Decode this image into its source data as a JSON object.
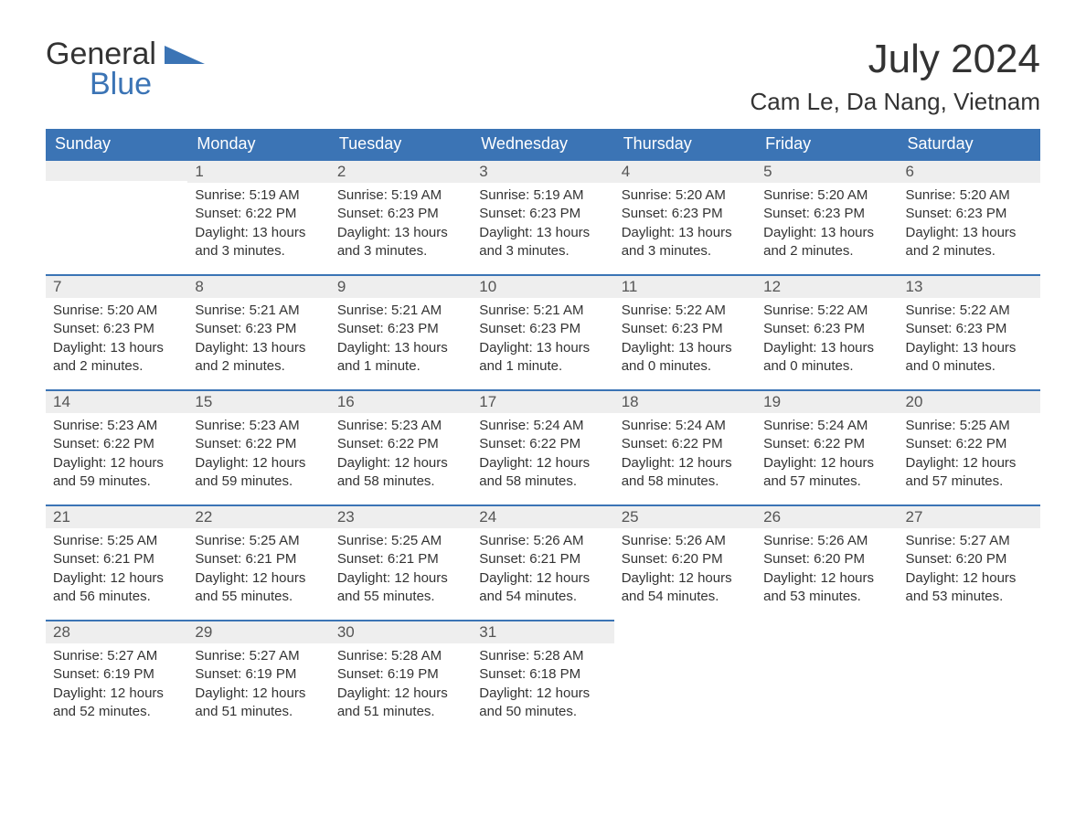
{
  "logo": {
    "line1": "General",
    "line2": "Blue"
  },
  "title": "July 2024",
  "subtitle": "Cam Le, Da Nang, Vietnam",
  "colors": {
    "header_bg": "#3b74b5",
    "header_text": "#ffffff",
    "daynum_bg": "#eeeeee",
    "daynum_border": "#3b74b5",
    "body_text": "#333333",
    "logo_accent": "#3b74b5",
    "page_bg": "#ffffff"
  },
  "typography": {
    "title_fontsize": 44,
    "subtitle_fontsize": 26,
    "header_fontsize": 18,
    "daynum_fontsize": 17,
    "body_fontsize": 15,
    "logo_fontsize": 34
  },
  "day_headers": [
    "Sunday",
    "Monday",
    "Tuesday",
    "Wednesday",
    "Thursday",
    "Friday",
    "Saturday"
  ],
  "weeks": [
    [
      null,
      {
        "n": "1",
        "sunrise": "Sunrise: 5:19 AM",
        "sunset": "Sunset: 6:22 PM",
        "dl1": "Daylight: 13 hours",
        "dl2": "and 3 minutes."
      },
      {
        "n": "2",
        "sunrise": "Sunrise: 5:19 AM",
        "sunset": "Sunset: 6:23 PM",
        "dl1": "Daylight: 13 hours",
        "dl2": "and 3 minutes."
      },
      {
        "n": "3",
        "sunrise": "Sunrise: 5:19 AM",
        "sunset": "Sunset: 6:23 PM",
        "dl1": "Daylight: 13 hours",
        "dl2": "and 3 minutes."
      },
      {
        "n": "4",
        "sunrise": "Sunrise: 5:20 AM",
        "sunset": "Sunset: 6:23 PM",
        "dl1": "Daylight: 13 hours",
        "dl2": "and 3 minutes."
      },
      {
        "n": "5",
        "sunrise": "Sunrise: 5:20 AM",
        "sunset": "Sunset: 6:23 PM",
        "dl1": "Daylight: 13 hours",
        "dl2": "and 2 minutes."
      },
      {
        "n": "6",
        "sunrise": "Sunrise: 5:20 AM",
        "sunset": "Sunset: 6:23 PM",
        "dl1": "Daylight: 13 hours",
        "dl2": "and 2 minutes."
      }
    ],
    [
      {
        "n": "7",
        "sunrise": "Sunrise: 5:20 AM",
        "sunset": "Sunset: 6:23 PM",
        "dl1": "Daylight: 13 hours",
        "dl2": "and 2 minutes."
      },
      {
        "n": "8",
        "sunrise": "Sunrise: 5:21 AM",
        "sunset": "Sunset: 6:23 PM",
        "dl1": "Daylight: 13 hours",
        "dl2": "and 2 minutes."
      },
      {
        "n": "9",
        "sunrise": "Sunrise: 5:21 AM",
        "sunset": "Sunset: 6:23 PM",
        "dl1": "Daylight: 13 hours",
        "dl2": "and 1 minute."
      },
      {
        "n": "10",
        "sunrise": "Sunrise: 5:21 AM",
        "sunset": "Sunset: 6:23 PM",
        "dl1": "Daylight: 13 hours",
        "dl2": "and 1 minute."
      },
      {
        "n": "11",
        "sunrise": "Sunrise: 5:22 AM",
        "sunset": "Sunset: 6:23 PM",
        "dl1": "Daylight: 13 hours",
        "dl2": "and 0 minutes."
      },
      {
        "n": "12",
        "sunrise": "Sunrise: 5:22 AM",
        "sunset": "Sunset: 6:23 PM",
        "dl1": "Daylight: 13 hours",
        "dl2": "and 0 minutes."
      },
      {
        "n": "13",
        "sunrise": "Sunrise: 5:22 AM",
        "sunset": "Sunset: 6:23 PM",
        "dl1": "Daylight: 13 hours",
        "dl2": "and 0 minutes."
      }
    ],
    [
      {
        "n": "14",
        "sunrise": "Sunrise: 5:23 AM",
        "sunset": "Sunset: 6:22 PM",
        "dl1": "Daylight: 12 hours",
        "dl2": "and 59 minutes."
      },
      {
        "n": "15",
        "sunrise": "Sunrise: 5:23 AM",
        "sunset": "Sunset: 6:22 PM",
        "dl1": "Daylight: 12 hours",
        "dl2": "and 59 minutes."
      },
      {
        "n": "16",
        "sunrise": "Sunrise: 5:23 AM",
        "sunset": "Sunset: 6:22 PM",
        "dl1": "Daylight: 12 hours",
        "dl2": "and 58 minutes."
      },
      {
        "n": "17",
        "sunrise": "Sunrise: 5:24 AM",
        "sunset": "Sunset: 6:22 PM",
        "dl1": "Daylight: 12 hours",
        "dl2": "and 58 minutes."
      },
      {
        "n": "18",
        "sunrise": "Sunrise: 5:24 AM",
        "sunset": "Sunset: 6:22 PM",
        "dl1": "Daylight: 12 hours",
        "dl2": "and 58 minutes."
      },
      {
        "n": "19",
        "sunrise": "Sunrise: 5:24 AM",
        "sunset": "Sunset: 6:22 PM",
        "dl1": "Daylight: 12 hours",
        "dl2": "and 57 minutes."
      },
      {
        "n": "20",
        "sunrise": "Sunrise: 5:25 AM",
        "sunset": "Sunset: 6:22 PM",
        "dl1": "Daylight: 12 hours",
        "dl2": "and 57 minutes."
      }
    ],
    [
      {
        "n": "21",
        "sunrise": "Sunrise: 5:25 AM",
        "sunset": "Sunset: 6:21 PM",
        "dl1": "Daylight: 12 hours",
        "dl2": "and 56 minutes."
      },
      {
        "n": "22",
        "sunrise": "Sunrise: 5:25 AM",
        "sunset": "Sunset: 6:21 PM",
        "dl1": "Daylight: 12 hours",
        "dl2": "and 55 minutes."
      },
      {
        "n": "23",
        "sunrise": "Sunrise: 5:25 AM",
        "sunset": "Sunset: 6:21 PM",
        "dl1": "Daylight: 12 hours",
        "dl2": "and 55 minutes."
      },
      {
        "n": "24",
        "sunrise": "Sunrise: 5:26 AM",
        "sunset": "Sunset: 6:21 PM",
        "dl1": "Daylight: 12 hours",
        "dl2": "and 54 minutes."
      },
      {
        "n": "25",
        "sunrise": "Sunrise: 5:26 AM",
        "sunset": "Sunset: 6:20 PM",
        "dl1": "Daylight: 12 hours",
        "dl2": "and 54 minutes."
      },
      {
        "n": "26",
        "sunrise": "Sunrise: 5:26 AM",
        "sunset": "Sunset: 6:20 PM",
        "dl1": "Daylight: 12 hours",
        "dl2": "and 53 minutes."
      },
      {
        "n": "27",
        "sunrise": "Sunrise: 5:27 AM",
        "sunset": "Sunset: 6:20 PM",
        "dl1": "Daylight: 12 hours",
        "dl2": "and 53 minutes."
      }
    ],
    [
      {
        "n": "28",
        "sunrise": "Sunrise: 5:27 AM",
        "sunset": "Sunset: 6:19 PM",
        "dl1": "Daylight: 12 hours",
        "dl2": "and 52 minutes."
      },
      {
        "n": "29",
        "sunrise": "Sunrise: 5:27 AM",
        "sunset": "Sunset: 6:19 PM",
        "dl1": "Daylight: 12 hours",
        "dl2": "and 51 minutes."
      },
      {
        "n": "30",
        "sunrise": "Sunrise: 5:28 AM",
        "sunset": "Sunset: 6:19 PM",
        "dl1": "Daylight: 12 hours",
        "dl2": "and 51 minutes."
      },
      {
        "n": "31",
        "sunrise": "Sunrise: 5:28 AM",
        "sunset": "Sunset: 6:18 PM",
        "dl1": "Daylight: 12 hours",
        "dl2": "and 50 minutes."
      },
      null,
      null,
      null
    ]
  ]
}
